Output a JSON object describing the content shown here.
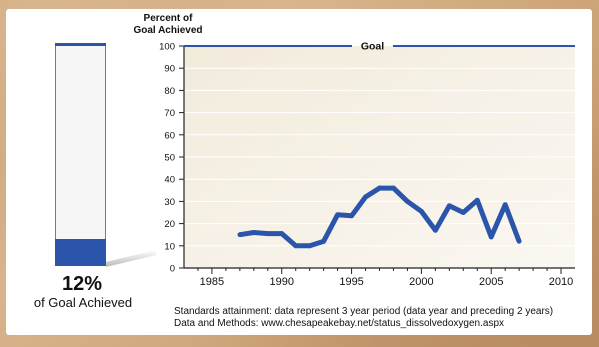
{
  "gauge": {
    "percent_value": 12,
    "percent_text": "12%",
    "caption": "of Goal Achieved",
    "fill_color": "#2a55ab"
  },
  "chart_data": {
    "type": "line",
    "ylabel": "Percent of Goal Achieved",
    "ylabel_lines": [
      "Percent of",
      "Goal Achieved"
    ],
    "ylim": [
      0,
      100
    ],
    "xlim": [
      1983,
      2011
    ],
    "y_ticks": [
      0,
      10,
      20,
      30,
      40,
      50,
      60,
      70,
      80,
      90,
      100
    ],
    "x_ticks": [
      1985,
      1990,
      1995,
      2000,
      2005,
      2010
    ],
    "goal": {
      "value": 100,
      "label": "Goal"
    },
    "series": [
      {
        "color": "#2a55ab",
        "x": [
          1987,
          1988,
          1989,
          1990,
          1991,
          1992,
          1993,
          1994,
          1995,
          1996,
          1997,
          1998,
          1999,
          2000,
          2001,
          2002,
          2003,
          2004,
          2005,
          2006,
          2007
        ],
        "y": [
          15,
          16,
          15.5,
          15.5,
          10,
          10,
          12,
          24,
          23.5,
          32,
          36,
          36,
          30,
          25.5,
          17,
          28,
          25,
          30.5,
          14,
          28.5,
          12
        ]
      }
    ],
    "grid": true,
    "plot_background": "#f4ede0"
  },
  "notes": {
    "line1": "Standards attainment: data represent 3 year period (data year and preceding 2 years)",
    "line2": "Data and Methods: www.chesapeakebay.net/status_dissolvedoxygen.aspx"
  }
}
